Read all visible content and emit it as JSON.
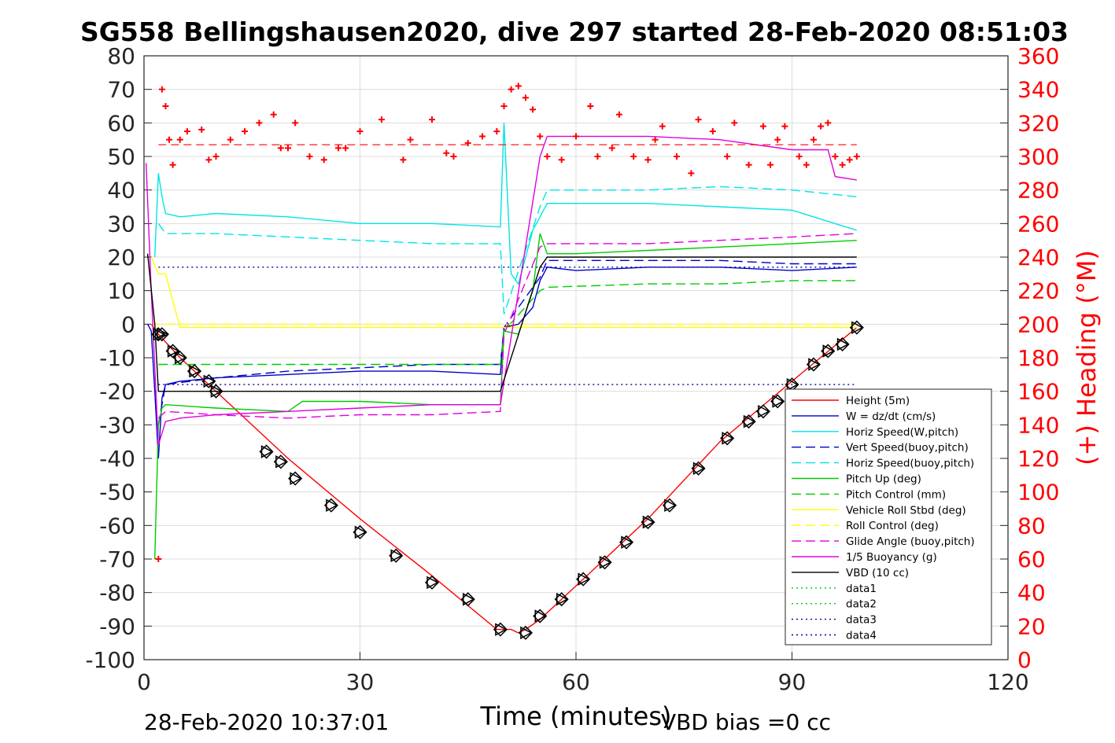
{
  "chart_data": {
    "type": "line",
    "title": "SG558 Bellingshausen2020, dive 297 started 28-Feb-2020 08:51:03",
    "xlabel": "Time (minutes)",
    "ylabel": "",
    "y2label": "(+) Heading (°M)",
    "xlim": [
      0,
      120
    ],
    "ylim": [
      -100,
      80
    ],
    "y2lim": [
      0,
      360
    ],
    "xticks": [
      0,
      30,
      60,
      90,
      120
    ],
    "yticks": [
      80,
      70,
      60,
      50,
      40,
      30,
      20,
      10,
      0,
      -10,
      -20,
      -30,
      -40,
      -50,
      -60,
      -70,
      -80,
      -90,
      -100
    ],
    "y2ticks": [
      360,
      340,
      320,
      300,
      280,
      260,
      240,
      220,
      200,
      180,
      160,
      140,
      120,
      100,
      80,
      60,
      40,
      20,
      0
    ],
    "grid": true,
    "legend_position": "bottom-right",
    "footer_left": "28-Feb-2020 10:37:01",
    "footer_right": "VBD bias =0 cc",
    "colors": {
      "red": "#ff0000",
      "blue": "#0000cc",
      "cyan": "#00e5e5",
      "green": "#00cc00",
      "yellow": "#ffff00",
      "magenta": "#e000e0",
      "black": "#000000",
      "navy": "#000099"
    },
    "series": [
      {
        "name": "Height (5m)",
        "style": "solid",
        "color": "#ff0000",
        "x": [
          1,
          2,
          5,
          10,
          20,
          30,
          40,
          49,
          50,
          51,
          52,
          53,
          55,
          60,
          70,
          80,
          90,
          99
        ],
        "y": [
          0,
          -3,
          -10,
          -20,
          -40,
          -58,
          -75,
          -91,
          -91,
          -91,
          -92,
          -91,
          -88,
          -78,
          -58,
          -35,
          -17,
          -1
        ]
      },
      {
        "name": "W = dz/dt (cm/s)",
        "style": "solid",
        "color": "#0000cc",
        "x": [
          0.5,
          1,
          1.5,
          2,
          2.5,
          3,
          5,
          10,
          20,
          30,
          40,
          49.5,
          50,
          52,
          54,
          55,
          56,
          60,
          70,
          80,
          90,
          99
        ],
        "y": [
          0,
          -2,
          -20,
          -40,
          -22,
          -18,
          -17,
          -16,
          -15,
          -14,
          -14,
          -15,
          -1,
          0,
          5,
          13,
          17,
          16,
          17,
          17,
          16,
          17
        ]
      },
      {
        "name": "Horiz Speed(W,pitch)",
        "style": "solid",
        "color": "#00e5e5",
        "x": [
          1.5,
          2,
          2.5,
          3,
          5,
          10,
          20,
          30,
          40,
          49.5,
          50,
          51,
          52,
          53,
          54,
          55,
          56,
          60,
          70,
          80,
          90,
          99
        ],
        "y": [
          20,
          45,
          38,
          33,
          32,
          33,
          32,
          30,
          30,
          29,
          60,
          15,
          12,
          20,
          28,
          32,
          36,
          36,
          36,
          35,
          34,
          28
        ]
      },
      {
        "name": "Vert Speed(buoy,pitch)",
        "style": "dashed",
        "color": "#0000cc",
        "x": [
          2,
          3,
          10,
          20,
          30,
          40,
          49.5,
          50,
          55,
          56,
          70,
          80,
          90,
          99
        ],
        "y": [
          -30,
          -18,
          -16,
          -14,
          -13,
          -12,
          -12,
          -1,
          14,
          19,
          19,
          19,
          18,
          18
        ]
      },
      {
        "name": "Horiz Speed(buoy,pitch)",
        "style": "dashed",
        "color": "#00e5e5",
        "x": [
          2,
          3,
          10,
          20,
          30,
          40,
          49.5,
          50,
          55,
          56,
          70,
          80,
          90,
          99
        ],
        "y": [
          30,
          27,
          27,
          26,
          25,
          24,
          24,
          3,
          35,
          40,
          40,
          41,
          40,
          38
        ]
      },
      {
        "name": "Pitch Up (deg)",
        "style": "solid",
        "color": "#00cc00",
        "x": [
          1.5,
          2,
          2.5,
          3,
          10,
          20,
          22,
          30,
          40,
          49.5,
          50,
          52,
          54,
          55,
          56,
          60,
          70,
          80,
          90,
          99
        ],
        "y": [
          -70,
          -30,
          -25,
          -24,
          -25,
          -26,
          -23,
          -23,
          -24,
          -24,
          -2,
          -3,
          10,
          27,
          21,
          21,
          22,
          23,
          24,
          25
        ]
      },
      {
        "name": "Pitch Control (mm)",
        "style": "dashed",
        "color": "#00cc00",
        "x": [
          2,
          3,
          10,
          20,
          30,
          40,
          49.5,
          50,
          55,
          56,
          70,
          80,
          90,
          99
        ],
        "y": [
          -12,
          -12,
          -12,
          -12,
          -12,
          -12,
          -12,
          -2,
          10,
          11,
          12,
          12,
          13,
          13
        ]
      },
      {
        "name": "Vehicle Roll Stbd (deg)",
        "style": "solid",
        "color": "#ffff00",
        "x": [
          1,
          2,
          3,
          5,
          10,
          20,
          30,
          40,
          49.5,
          50,
          55,
          60,
          70,
          80,
          90,
          99
        ],
        "y": [
          20,
          15,
          15,
          -1,
          -1,
          -1,
          -1,
          -1,
          -1,
          -1,
          -1,
          -1,
          -1,
          -1,
          -1,
          -1
        ]
      },
      {
        "name": "Roll Control (deg)",
        "style": "dashed",
        "color": "#ffff00",
        "x": [
          1,
          3,
          10,
          20,
          30,
          40,
          49.5,
          50,
          60,
          70,
          80,
          90,
          99
        ],
        "y": [
          0,
          0,
          0,
          0,
          0,
          0,
          0,
          0,
          0,
          0,
          0,
          0,
          0
        ]
      },
      {
        "name": "Glide Angle (buoy,pitch)",
        "style": "dashed",
        "color": "#e000e0",
        "x": [
          2,
          3,
          10,
          20,
          30,
          40,
          49.5,
          50,
          55,
          56,
          70,
          80,
          90,
          99
        ],
        "y": [
          -28,
          -26,
          -27,
          -28,
          -27,
          -27,
          -26,
          -3,
          23,
          24,
          24,
          25,
          26,
          27
        ]
      },
      {
        "name": "1/5 Buoyancy (g)",
        "style": "solid",
        "color": "#e000e0",
        "x": [
          0.3,
          1,
          2,
          3,
          5,
          10,
          20,
          30,
          40,
          49.5,
          55,
          56,
          70,
          80,
          90,
          95,
          96,
          99
        ],
        "y": [
          48,
          10,
          -36,
          -29,
          -28,
          -27,
          -26,
          -25,
          -24,
          -24,
          50,
          56,
          56,
          55,
          52,
          52,
          44,
          43
        ]
      },
      {
        "name": "VBD (10 cc)",
        "style": "solid",
        "color": "#000000",
        "x": [
          0.5,
          1.5,
          2,
          49.5,
          55,
          56,
          99
        ],
        "y": [
          21,
          0,
          -20,
          -20,
          17,
          20,
          20
        ]
      },
      {
        "name": "data1",
        "style": "dotted",
        "color": "#00cc00",
        "x": [],
        "y": []
      },
      {
        "name": "data2",
        "style": "dotted",
        "color": "#00cc00",
        "x": [],
        "y": []
      },
      {
        "name": "data3",
        "style": "dotted",
        "color": "#000099",
        "x": [
          2,
          99
        ],
        "y": [
          17,
          17
        ]
      },
      {
        "name": "data4",
        "style": "dotted",
        "color": "#000099",
        "x": [
          2,
          99
        ],
        "y": [
          -18,
          -18
        ]
      }
    ],
    "heading": {
      "axis": "right",
      "color": "#ff0000",
      "marker": "+",
      "target": 307,
      "x": [
        2,
        2.5,
        3,
        3.5,
        4,
        5,
        6,
        8,
        9,
        10,
        12,
        14,
        16,
        18,
        19,
        20,
        21,
        23,
        25,
        27,
        28,
        30,
        33,
        36,
        37,
        40,
        42,
        43,
        45,
        47,
        49,
        50,
        51,
        52,
        53,
        54,
        55,
        56,
        58,
        60,
        62,
        63,
        65,
        66,
        68,
        70,
        71,
        72,
        74,
        76,
        77,
        79,
        81,
        82,
        84,
        86,
        87,
        88,
        89,
        91,
        92,
        93,
        94,
        95,
        96,
        97,
        98,
        99
      ],
      "y": [
        60,
        340,
        330,
        310,
        295,
        310,
        315,
        316,
        298,
        300,
        310,
        315,
        320,
        325,
        305,
        305,
        320,
        300,
        298,
        305,
        305,
        315,
        322,
        298,
        310,
        322,
        302,
        300,
        308,
        312,
        315,
        330,
        340,
        342,
        335,
        328,
        312,
        300,
        298,
        312,
        330,
        300,
        305,
        325,
        300,
        298,
        310,
        318,
        300,
        290,
        322,
        315,
        300,
        320,
        295,
        318,
        295,
        310,
        318,
        300,
        295,
        310,
        318,
        320,
        300,
        295,
        298,
        300
      ]
    },
    "markers": {
      "name": "Height samples",
      "color": "#000000",
      "descent_marker": "diamond",
      "ascent_marker": "triangle-right",
      "x": [
        2,
        2.5,
        4,
        5,
        7,
        9,
        10,
        17,
        19,
        21,
        26,
        30,
        35,
        40,
        45,
        49.5,
        53,
        55,
        58,
        61,
        64,
        67,
        70,
        73,
        77,
        81,
        84,
        86,
        88,
        90,
        93,
        95,
        97,
        99
      ],
      "y": [
        -3,
        -3,
        -8,
        -10,
        -14,
        -17,
        -20,
        -38,
        -41,
        -46,
        -54,
        -62,
        -69,
        -77,
        -82,
        -91,
        -92,
        -87,
        -82,
        -76,
        -71,
        -65,
        -59,
        -54,
        -43,
        -34,
        -29,
        -26,
        -23,
        -18,
        -12,
        -8,
        -6,
        -1
      ]
    }
  }
}
